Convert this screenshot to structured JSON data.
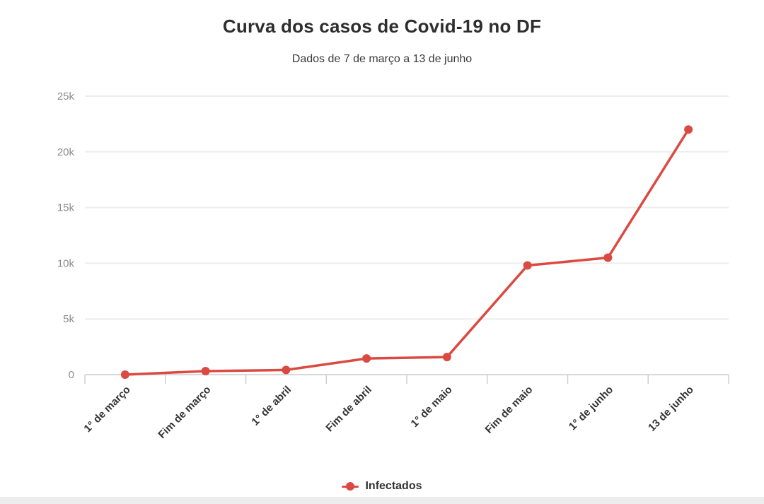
{
  "header": {
    "title": "Curva dos casos de Covid-19 no DF",
    "subtitle": "Dados de 7 de março a 13 de junho"
  },
  "legend": {
    "label": "Infectados"
  },
  "colors": {
    "line": "#db4a42",
    "grid": "#ededed",
    "axis_line": "#d9d9d9",
    "tick": "#cfcfcf",
    "y_label": "#8c8c8c",
    "x_label": "#333333",
    "title": "#2e2e2e",
    "subtitle": "#3a3a3a",
    "bottom_strip": "#ededed"
  },
  "chart_data": {
    "type": "line",
    "title": "Curva dos casos de Covid-19 no DF",
    "subtitle": "Dados de 7 de março a 13 de junho",
    "categories": [
      "1° de março",
      "Fim de março",
      "1° de abril",
      "Fim de abril",
      "1° de maio",
      "Fim de maio",
      "1° de junho",
      "13 de junho"
    ],
    "series": [
      {
        "name": "Infectados",
        "color": "#db4a42",
        "values": [
          1,
          320,
          420,
          1450,
          1580,
          9800,
          10500,
          22000
        ]
      }
    ],
    "ylim": [
      0,
      25000
    ],
    "y_ticks": [
      {
        "value": 0,
        "label": "0"
      },
      {
        "value": 5000,
        "label": "5k"
      },
      {
        "value": 10000,
        "label": "10k"
      },
      {
        "value": 15000,
        "label": "15k"
      },
      {
        "value": 20000,
        "label": "20k"
      },
      {
        "value": 25000,
        "label": "25k"
      }
    ],
    "grid": true,
    "legend_position": "bottom",
    "marker": "circle",
    "marker_radius": 6,
    "line_width": 3.5
  }
}
